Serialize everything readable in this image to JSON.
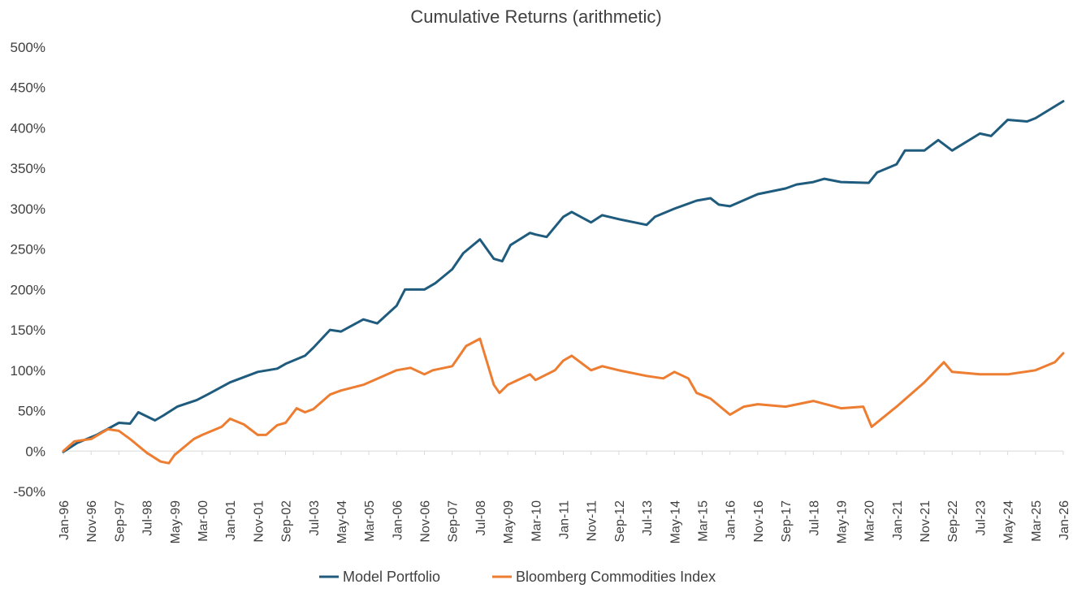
{
  "chart_data": {
    "type": "line",
    "title": "Cumulative Returns (arithmetic)",
    "xlabel": "",
    "ylabel": "",
    "ylim": [
      -50,
      500
    ],
    "y_ticks": [
      -50,
      0,
      50,
      100,
      150,
      200,
      250,
      300,
      350,
      400,
      450,
      500
    ],
    "y_tick_labels": [
      "-50%",
      "0%",
      "50%",
      "100%",
      "150%",
      "200%",
      "250%",
      "300%",
      "350%",
      "400%",
      "450%",
      "500%"
    ],
    "x_range": [
      "Jan-96",
      "Jan-26"
    ],
    "x_tick_labels": [
      "Jan-96",
      "Nov-96",
      "Sep-97",
      "Jul-98",
      "May-99",
      "Mar-00",
      "Jan-01",
      "Nov-01",
      "Sep-02",
      "Jul-03",
      "May-04",
      "Mar-05",
      "Jan-06",
      "Nov-06",
      "Sep-07",
      "Jul-08",
      "May-09",
      "Mar-10",
      "Jan-11",
      "Nov-11",
      "Sep-12",
      "Jul-13",
      "May-14",
      "Mar-15",
      "Jan-16",
      "Nov-16",
      "Sep-17",
      "Jul-18",
      "May-19",
      "Mar-20",
      "Jan-21",
      "Nov-21",
      "Sep-22",
      "Jul-23",
      "May-24",
      "Mar-25",
      "Jan-26"
    ],
    "grid": false,
    "legend_position": "bottom",
    "series": [
      {
        "name": "Model Portfolio",
        "color": "#1f5b7d",
        "points": [
          [
            "Jan-96",
            -1
          ],
          [
            "Jun-96",
            10
          ],
          [
            "Jan-97",
            20
          ],
          [
            "Sep-97",
            35
          ],
          [
            "Jan-98",
            34
          ],
          [
            "Apr-98",
            48
          ],
          [
            "Oct-98",
            38
          ],
          [
            "Jan-99",
            44
          ],
          [
            "Jun-99",
            55
          ],
          [
            "Jan-00",
            63
          ],
          [
            "Jun-00",
            72
          ],
          [
            "Jan-01",
            85
          ],
          [
            "Nov-01",
            98
          ],
          [
            "Jun-02",
            102
          ],
          [
            "Sep-02",
            108
          ],
          [
            "Apr-03",
            118
          ],
          [
            "Jul-03",
            128
          ],
          [
            "Jan-04",
            150
          ],
          [
            "May-04",
            148
          ],
          [
            "Jan-05",
            163
          ],
          [
            "Jun-05",
            158
          ],
          [
            "Jan-06",
            180
          ],
          [
            "Apr-06",
            200
          ],
          [
            "Nov-06",
            200
          ],
          [
            "Mar-07",
            208
          ],
          [
            "Sep-07",
            225
          ],
          [
            "Jan-08",
            245
          ],
          [
            "Jul-08",
            262
          ],
          [
            "Dec-08",
            238
          ],
          [
            "Mar-09",
            235
          ],
          [
            "Jun-09",
            255
          ],
          [
            "Jan-10",
            270
          ],
          [
            "Mar-10",
            268
          ],
          [
            "Jul-10",
            265
          ],
          [
            "Jan-11",
            290
          ],
          [
            "Apr-11",
            296
          ],
          [
            "Nov-11",
            283
          ],
          [
            "Mar-12",
            292
          ],
          [
            "Sep-12",
            287
          ],
          [
            "Jul-13",
            280
          ],
          [
            "Oct-13",
            290
          ],
          [
            "May-14",
            300
          ],
          [
            "Jan-15",
            310
          ],
          [
            "Jun-15",
            313
          ],
          [
            "Sep-15",
            305
          ],
          [
            "Jan-16",
            303
          ],
          [
            "Nov-16",
            318
          ],
          [
            "Sep-17",
            325
          ],
          [
            "Jan-18",
            330
          ],
          [
            "Jul-18",
            333
          ],
          [
            "Nov-18",
            337
          ],
          [
            "May-19",
            333
          ],
          [
            "Mar-20",
            332
          ],
          [
            "Jun-20",
            345
          ],
          [
            "Jan-21",
            355
          ],
          [
            "Apr-21",
            372
          ],
          [
            "Nov-21",
            372
          ],
          [
            "Apr-22",
            385
          ],
          [
            "Sep-22",
            372
          ],
          [
            "Jul-23",
            393
          ],
          [
            "Nov-23",
            390
          ],
          [
            "May-24",
            410
          ],
          [
            "Dec-24",
            408
          ],
          [
            "Mar-25",
            412
          ],
          [
            "Jan-26",
            433
          ]
        ]
      },
      {
        "name": "Bloomberg Commodities Index",
        "color": "#ed7d31",
        "points": [
          [
            "Jan-96",
            0
          ],
          [
            "May-96",
            12
          ],
          [
            "Nov-96",
            15
          ],
          [
            "May-97",
            27
          ],
          [
            "Sep-97",
            25
          ],
          [
            "Jan-98",
            15
          ],
          [
            "Jul-98",
            -2
          ],
          [
            "Dec-98",
            -13
          ],
          [
            "Mar-99",
            -15
          ],
          [
            "May-99",
            -5
          ],
          [
            "Dec-99",
            15
          ],
          [
            "Mar-00",
            20
          ],
          [
            "Oct-00",
            30
          ],
          [
            "Jan-01",
            40
          ],
          [
            "Jun-01",
            33
          ],
          [
            "Nov-01",
            20
          ],
          [
            "Feb-02",
            20
          ],
          [
            "Jun-02",
            32
          ],
          [
            "Sep-02",
            35
          ],
          [
            "Jan-03",
            53
          ],
          [
            "Apr-03",
            48
          ],
          [
            "Jul-03",
            52
          ],
          [
            "Jan-04",
            70
          ],
          [
            "May-04",
            75
          ],
          [
            "Jan-05",
            82
          ],
          [
            "Jan-06",
            100
          ],
          [
            "Jun-06",
            103
          ],
          [
            "Nov-06",
            95
          ],
          [
            "Feb-07",
            100
          ],
          [
            "Sep-07",
            105
          ],
          [
            "Nov-07",
            115
          ],
          [
            "Feb-08",
            130
          ],
          [
            "Jul-08",
            139
          ],
          [
            "Dec-08",
            82
          ],
          [
            "Feb-09",
            72
          ],
          [
            "May-09",
            82
          ],
          [
            "Jan-10",
            95
          ],
          [
            "Mar-10",
            88
          ],
          [
            "Oct-10",
            100
          ],
          [
            "Jan-11",
            112
          ],
          [
            "Apr-11",
            118
          ],
          [
            "Nov-11",
            100
          ],
          [
            "Mar-12",
            105
          ],
          [
            "Sep-12",
            100
          ],
          [
            "Jul-13",
            93
          ],
          [
            "Jan-14",
            90
          ],
          [
            "May-14",
            98
          ],
          [
            "Oct-14",
            90
          ],
          [
            "Jan-15",
            72
          ],
          [
            "Jun-15",
            65
          ],
          [
            "Jan-16",
            45
          ],
          [
            "Jun-16",
            55
          ],
          [
            "Nov-16",
            58
          ],
          [
            "Sep-17",
            55
          ],
          [
            "Jul-18",
            62
          ],
          [
            "May-19",
            53
          ],
          [
            "Jan-20",
            55
          ],
          [
            "Apr-20",
            30
          ],
          [
            "Jan-21",
            55
          ],
          [
            "Nov-21",
            85
          ],
          [
            "Jun-22",
            110
          ],
          [
            "Sep-22",
            98
          ],
          [
            "Jul-23",
            95
          ],
          [
            "May-24",
            95
          ],
          [
            "Mar-25",
            100
          ],
          [
            "Oct-25",
            110
          ],
          [
            "Jan-26",
            121
          ]
        ]
      }
    ]
  }
}
